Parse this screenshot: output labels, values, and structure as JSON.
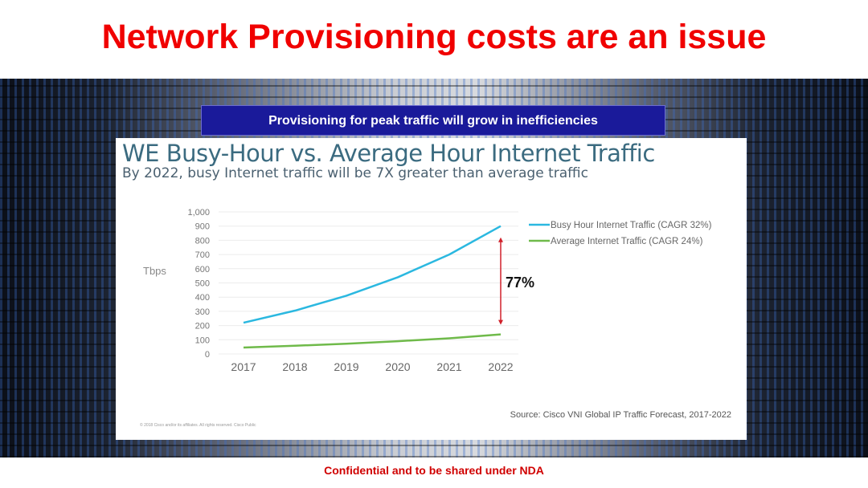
{
  "slide": {
    "title": "Network Provisioning costs are an issue",
    "banner": "Provisioning for peak traffic will grow in inefficiencies",
    "footer": "Confidential and to be shared under NDA"
  },
  "chart_data": {
    "type": "line",
    "title": "WE Busy-Hour vs. Average Hour Internet Traffic",
    "subtitle": "By 2022, busy Internet traffic will be 7X greater than average traffic",
    "xlabel": "",
    "ylabel": "Tbps",
    "categories": [
      "2017",
      "2018",
      "2019",
      "2020",
      "2021",
      "2022"
    ],
    "ylim": [
      0,
      1000
    ],
    "yticks": [
      "0",
      "100",
      "200",
      "300",
      "400",
      "500",
      "600",
      "700",
      "800",
      "900",
      "1,000"
    ],
    "ytick_values": [
      0,
      100,
      200,
      300,
      400,
      500,
      600,
      700,
      800,
      900,
      1000
    ],
    "grid": true,
    "legend": "right",
    "series": [
      {
        "name": "Busy Hour Internet Traffic (CAGR 32%)",
        "color": "#2bb8e0",
        "values": [
          220,
          305,
          410,
          540,
          700,
          900
        ]
      },
      {
        "name": "Average Internet Traffic (CAGR 24%)",
        "color": "#6fba4a",
        "values": [
          45,
          58,
          72,
          90,
          110,
          138
        ]
      }
    ],
    "annotation": {
      "text": "77%",
      "color": "#d0202a"
    },
    "source": "Source: Cisco VNI Global IP Traffic Forecast, 2017-2022",
    "copyright": "© 2018 Cisco and/or its affiliates. All rights reserved. Cisco Public"
  }
}
